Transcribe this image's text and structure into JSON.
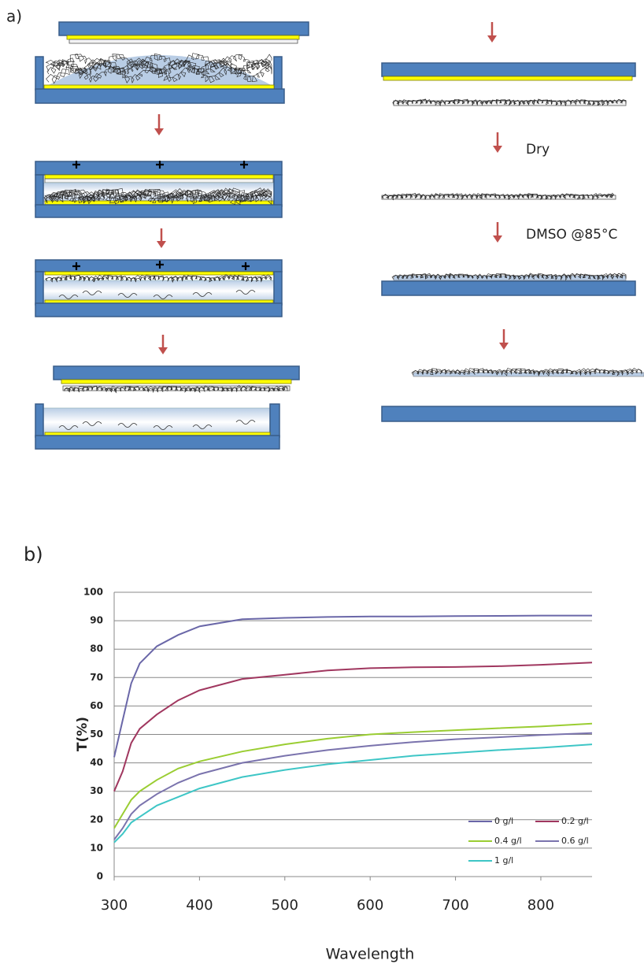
{
  "panel_a": {
    "label": "a)",
    "steps": [
      "Dry",
      "DMSO @85°C"
    ]
  },
  "chart_data": {
    "type": "line",
    "panel_label": "b)",
    "x_label": "Wavelength",
    "y_label": "T(%)",
    "x": [
      300,
      310,
      320,
      330,
      350,
      375,
      400,
      450,
      500,
      550,
      600,
      650,
      700,
      750,
      800,
      860
    ],
    "xlim": [
      300,
      860
    ],
    "xticks": [
      300,
      400,
      500,
      600,
      700,
      800
    ],
    "ylim": [
      0,
      100
    ],
    "yticks": [
      0,
      10,
      20,
      30,
      40,
      50,
      60,
      70,
      80,
      90,
      100
    ],
    "grid": true,
    "legend": "lower right",
    "series": [
      {
        "name": "0 g/l",
        "color": "#6a67a8",
        "values": [
          42,
          55,
          68,
          75,
          81,
          85,
          88,
          90.5,
          91,
          91.3,
          91.5,
          91.5,
          91.6,
          91.7,
          91.8,
          91.8
        ]
      },
      {
        "name": "0.2 g/l",
        "color": "#a0375f",
        "values": [
          30,
          37,
          47,
          52,
          57,
          62,
          65.5,
          69.5,
          71,
          72.5,
          73.3,
          73.6,
          73.7,
          74,
          74.5,
          75.3
        ]
      },
      {
        "name": "0.4 g/l",
        "color": "#9acd32",
        "values": [
          17,
          22,
          27,
          30,
          34,
          38,
          40.5,
          44,
          46.5,
          48.5,
          50,
          50.8,
          51.5,
          52.2,
          52.8,
          53.8
        ]
      },
      {
        "name": "0.6 g/l",
        "color": "#7a73ad",
        "values": [
          13,
          17,
          22,
          25,
          29,
          33,
          36,
          40,
          42.5,
          44.5,
          46,
          47.3,
          48.3,
          49,
          49.8,
          50.5
        ]
      },
      {
        "name": "1 g/l",
        "color": "#3ec6c6",
        "values": [
          12,
          15,
          19,
          21,
          25,
          28,
          31,
          35,
          37.5,
          39.5,
          41,
          42.5,
          43.5,
          44.5,
          45.3,
          46.5
        ]
      }
    ]
  }
}
